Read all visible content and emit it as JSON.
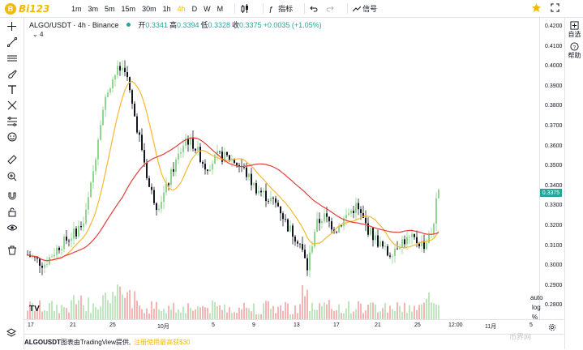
{
  "brand": {
    "logo_text": "Bi123",
    "logo_mark": "B"
  },
  "toolbar": {
    "intervals": [
      "1m",
      "3m",
      "5m",
      "15m",
      "30m",
      "1h",
      "4h",
      "D",
      "W",
      "M"
    ],
    "active_interval": "4h",
    "indicators_label": "指标",
    "signals_label": "信号"
  },
  "legend": {
    "symbol": "ALGO/USDT · 4h · Binance",
    "open_label": "开",
    "open": "0.3341",
    "high_label": "高",
    "high": "0.3394",
    "low_label": "低",
    "low": "0.3328",
    "close_label": "收",
    "close": "0.3375",
    "change": "+0.0035 (+1.05%)",
    "collapse_count": "4"
  },
  "price_axis": {
    "labels": [
      "0.4200",
      "0.4100",
      "0.4000",
      "0.3900",
      "0.3800",
      "0.3700",
      "0.3600",
      "0.3500",
      "0.3400",
      "0.3300",
      "0.3200",
      "0.3100",
      "0.3000",
      "0.2900",
      "0.2800"
    ],
    "last_price": "0.3375"
  },
  "time_axis": {
    "labels": [
      "17",
      "21",
      "25",
      "10月",
      "5",
      "9",
      "13",
      "17",
      "21",
      "25",
      "12:00",
      "11月",
      "5"
    ]
  },
  "axis_options": {
    "percent": "%",
    "log": "log",
    "auto": "auto"
  },
  "right_panel": {
    "auto_select": "自选",
    "help": "帮助"
  },
  "footer": {
    "symbol": "ALGOUSDT",
    "source": "图表由TradingView提供,",
    "promo": "注册使用最高获$30"
  },
  "tradingview_mark": "TV",
  "watermark": "币界网",
  "colors": {
    "up": "#26a69a",
    "up_candle": "#8fd68f",
    "down": "#131722",
    "ma_fast": "#f5b82e",
    "ma_slow": "#e0403c",
    "accent": "#f0b90b"
  },
  "chart_data": {
    "type": "candlestick",
    "symbol": "ALGO/USDT",
    "interval": "4h",
    "ylim": [
      0.275,
      0.4225
    ],
    "ohlc": [],
    "volume": []
  }
}
